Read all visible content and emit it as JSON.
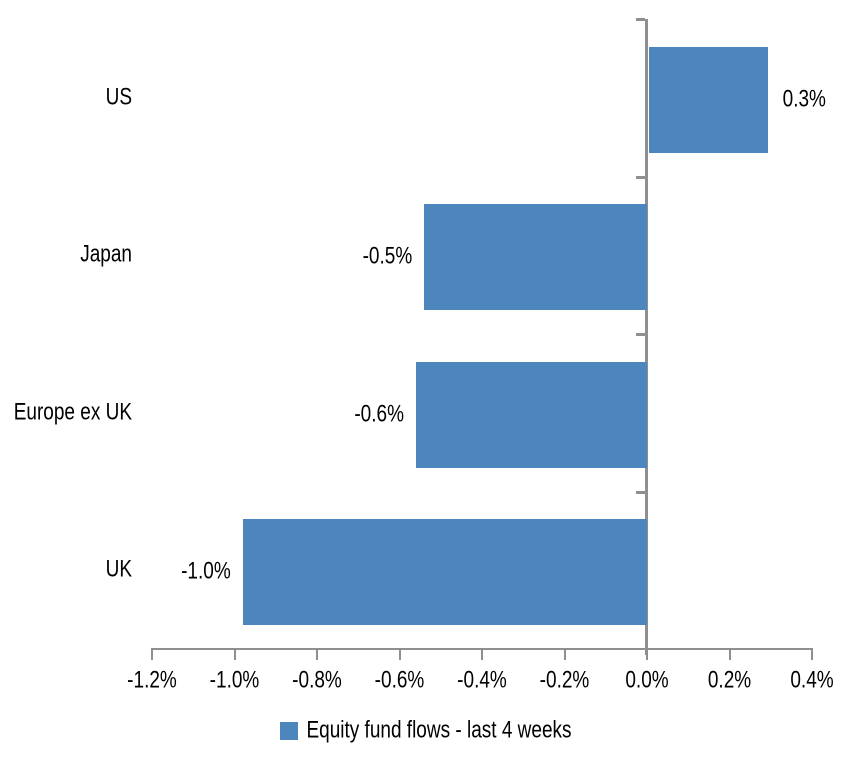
{
  "chart_data": {
    "type": "bar",
    "orientation": "horizontal",
    "title": "",
    "categories": [
      "US",
      "Japan",
      "Europe ex UK",
      "UK"
    ],
    "values": [
      0.3,
      -0.5,
      -0.6,
      -1.0
    ],
    "unit": "%",
    "data_labels": [
      "0.3%",
      "-0.5%",
      "-0.6%",
      "-1.0%"
    ],
    "bar_lengths_drawn_pct": [
      0.29,
      -0.54,
      -0.56,
      -0.98
    ],
    "x_axis": {
      "min": -1.2,
      "max": 0.4,
      "tick_step": 0.2,
      "tick_labels": [
        "-1.2%",
        "-1.0%",
        "-0.8%",
        "-0.6%",
        "-0.4%",
        "-0.2%",
        "0.0%",
        "0.2%",
        "0.4%"
      ]
    },
    "y_axis": {
      "categories_top_to_bottom": [
        "US",
        "Japan",
        "Europe ex UK",
        "UK"
      ]
    },
    "legend": {
      "position": "bottom",
      "items": [
        {
          "label": "Equity fund flows - last 4 weeks",
          "color": "#4D86BC"
        }
      ]
    },
    "grid": false,
    "colors": {
      "bar": "#4D86BC",
      "axis": "#8F8F8F",
      "text": "#000000",
      "background": "#FFFFFF"
    }
  }
}
